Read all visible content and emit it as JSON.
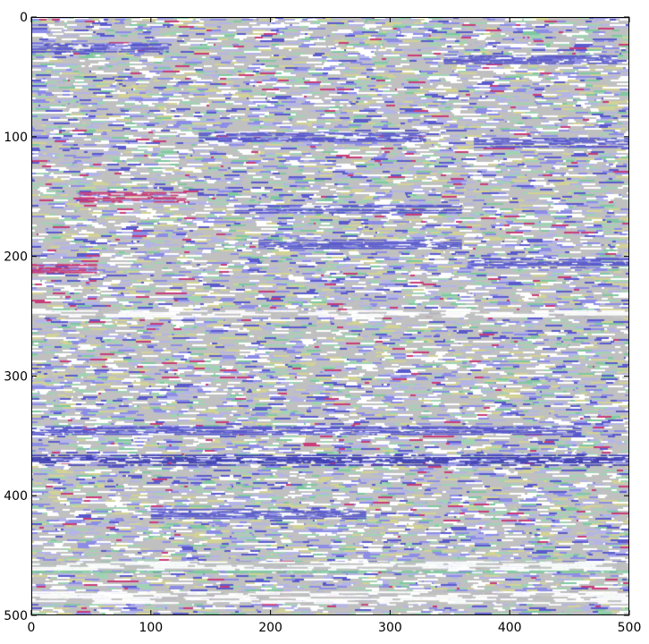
{
  "chart_data": {
    "type": "heatmap",
    "title": "",
    "xlabel": "",
    "ylabel": "",
    "xlim": [
      0,
      500
    ],
    "ylim": [
      500,
      0
    ],
    "y_axis_inverted": true,
    "grid": false,
    "legend": "none",
    "x_ticks": [
      0,
      100,
      200,
      300,
      400,
      500
    ],
    "y_ticks": [
      0,
      100,
      200,
      300,
      400,
      500
    ],
    "x_tick_labels": [
      "0",
      "100",
      "200",
      "300",
      "400",
      "500"
    ],
    "y_tick_labels": [
      "0",
      "100",
      "200",
      "300",
      "400",
      "500"
    ],
    "image_size": [
      500,
      500
    ],
    "content": "noisy multicolor image with horizontal streak texture on a gray background",
    "palette": {
      "background": "#c0c0c0",
      "colors": [
        "#c0c0c0",
        "#ffffff",
        "#5a5acd",
        "#8c8ce6",
        "#7ec8a0",
        "#a0d2b4",
        "#c83c78",
        "#d2d296",
        "#b4b4e6",
        "#3c3cb4"
      ]
    },
    "prominent_streaks": [
      {
        "y": 25,
        "x_start": 0,
        "x_end": 115,
        "color": "#5a5acd"
      },
      {
        "y": 35,
        "x_start": 345,
        "x_end": 490,
        "color": "#5a5acd"
      },
      {
        "y": 100,
        "x_start": 140,
        "x_end": 330,
        "color": "#5a5acd"
      },
      {
        "y": 105,
        "x_start": 370,
        "x_end": 500,
        "color": "#5a5acd"
      },
      {
        "y": 150,
        "x_start": 40,
        "x_end": 130,
        "color": "#c83c78"
      },
      {
        "y": 160,
        "x_start": 170,
        "x_end": 360,
        "color": "#5a5acd"
      },
      {
        "y": 190,
        "x_start": 190,
        "x_end": 360,
        "color": "#5a5acd"
      },
      {
        "y": 205,
        "x_start": 365,
        "x_end": 500,
        "color": "#5a5acd"
      },
      {
        "y": 210,
        "x_start": 0,
        "x_end": 55,
        "color": "#c83c78"
      },
      {
        "y": 345,
        "x_start": 0,
        "x_end": 460,
        "color": "#5a5acd"
      },
      {
        "y": 370,
        "x_start": 0,
        "x_end": 500,
        "color": "#3c3cb4"
      },
      {
        "y": 415,
        "x_start": 100,
        "x_end": 280,
        "color": "#5a5acd"
      },
      {
        "y": 460,
        "x_start": 0,
        "x_end": 500,
        "color": "#7ec8a0"
      }
    ]
  }
}
